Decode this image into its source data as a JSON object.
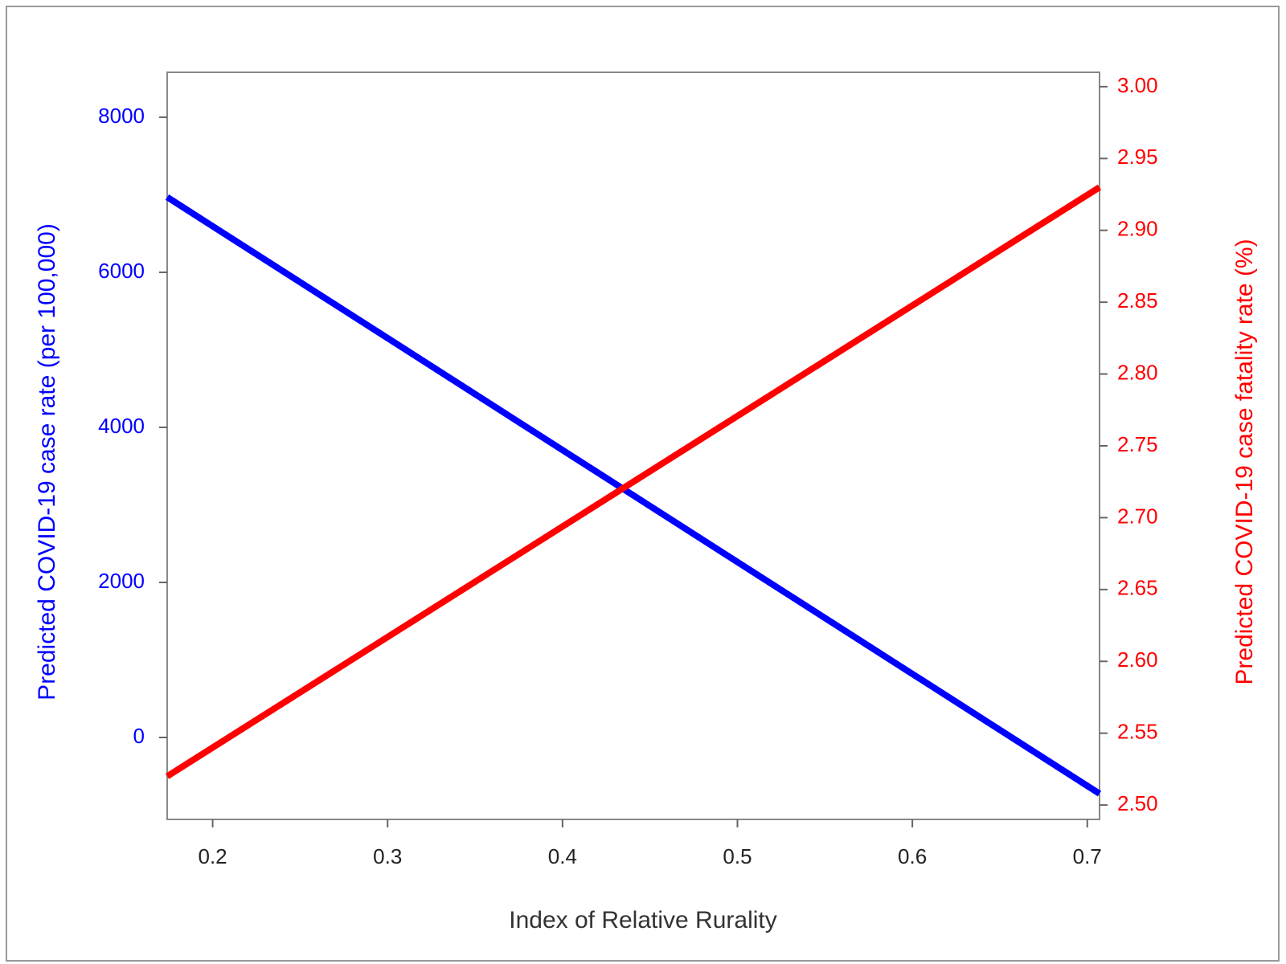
{
  "chart_data": {
    "type": "line",
    "x_label": "Index of Relative Rurality",
    "y_label": "Predicted COVID-19 case rate (per 100,000)",
    "y2_label": "Predicted COVID-19 case fatality rate (%)",
    "x": [
      0.174,
      0.707
    ],
    "series": [
      {
        "name": "Predicted COVID-19 case rate (per 100,000)",
        "color": "#0000ff",
        "values": [
          6970,
          -725
        ]
      },
      {
        "name": "Predicted COVID-19 case fatality rate (%)",
        "color": "#ff0000",
        "axis": "y2",
        "values": [
          2.52,
          2.93
        ]
      }
    ],
    "xlim": [
      0.174,
      0.707
    ],
    "xticks": [
      0.2,
      0.3,
      0.4,
      0.5,
      0.6,
      0.7
    ],
    "ylim": [
      -1057,
      8580
    ],
    "yticks": [
      0,
      2000,
      4000,
      6000,
      8000
    ],
    "y2lim": [
      2.49,
      3.01
    ],
    "y2ticks": [
      {
        "value": 2.5,
        "label": "2.50"
      },
      {
        "value": 2.55,
        "label": "2.55"
      },
      {
        "value": 2.6,
        "label": "2.60"
      },
      {
        "value": 2.65,
        "label": "2.65"
      },
      {
        "value": 2.7,
        "label": "2.70"
      },
      {
        "value": 2.75,
        "label": "2.75"
      },
      {
        "value": 2.8,
        "label": "2.80"
      },
      {
        "value": 2.85,
        "label": "2.85"
      },
      {
        "value": 2.9,
        "label": "2.90"
      },
      {
        "value": 2.95,
        "label": "2.95"
      },
      {
        "value": 3.0,
        "label": "3.00"
      }
    ]
  }
}
